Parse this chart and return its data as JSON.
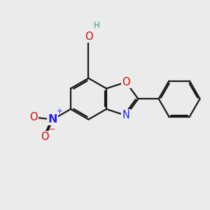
{
  "background_color": "#ebebeb",
  "bond_color": "#1a1a1a",
  "N_color": "#2020ff",
  "O_color": "#dd0000",
  "OH_O_color": "#dd0000",
  "H_color": "#3a9a7a",
  "line_width": 1.6,
  "figsize": [
    3.0,
    3.0
  ],
  "dpi": 100,
  "xlim": [
    0,
    10
  ],
  "ylim": [
    0,
    10
  ]
}
